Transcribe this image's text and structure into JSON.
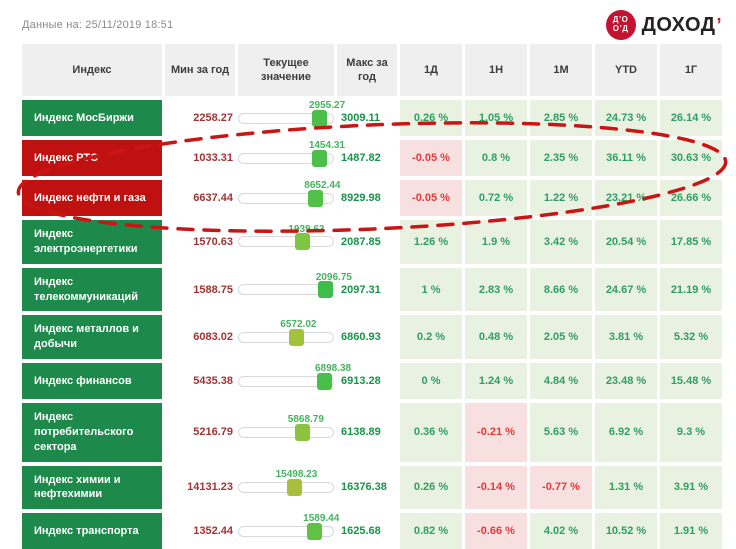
{
  "meta": {
    "timestamp_label": "Данные на: 25/11/2019 18:51"
  },
  "logo": {
    "badge_lines": [
      "Д’О",
      "О’Д"
    ],
    "text": "ДОХОД",
    "tick": "’",
    "badge_color": "#c41230"
  },
  "columns": [
    "Индекс",
    "Мин за год",
    "Текущее значение",
    "Макс за год",
    "1Д",
    "1Н",
    "1М",
    "YTD",
    "1Г"
  ],
  "colors": {
    "label_green": "#1d8a4b",
    "label_red": "#c01111",
    "pct_positive_bg": "#e9f1e0",
    "pct_negative_bg": "#f9e0e0",
    "pct_positive_text": "#2f9e63",
    "pct_negative_text": "#e23b3b",
    "min_text": "#a03434",
    "max_text": "#179447",
    "current_text": "#45b35f",
    "annotation": "#cb1414"
  },
  "rows": [
    {
      "name": "Индекс МосБиржи",
      "tone": "green",
      "min": "2258.27",
      "current": "2955.27",
      "max": "3009.11",
      "thumb_color": "#4bbf4a",
      "pcts": [
        "0.26 %",
        "1.05 %",
        "2.85 %",
        "24.73 %",
        "26.14 %"
      ]
    },
    {
      "name": "Индекс РТС",
      "tone": "red",
      "min": "1033.31",
      "current": "1454.31",
      "max": "1487.82",
      "thumb_color": "#4bbf4a",
      "pcts": [
        "-0.05 %",
        "0.8 %",
        "2.35 %",
        "36.11 %",
        "30.63 %"
      ]
    },
    {
      "name": "Индекс нефти и газа",
      "tone": "red",
      "min": "6637.44",
      "current": "8652.44",
      "max": "8929.98",
      "thumb_color": "#52c148",
      "pcts": [
        "-0.05 %",
        "0.72 %",
        "1.22 %",
        "23.21 %",
        "26.66 %"
      ]
    },
    {
      "name": "Индекс электроэнергетики",
      "tone": "green",
      "min": "1570.63",
      "current": "1939.63",
      "max": "2087.85",
      "thumb_color": "#7cc742",
      "pcts": [
        "1.26 %",
        "1.9 %",
        "3.42 %",
        "20.54 %",
        "17.85 %"
      ]
    },
    {
      "name": "Индекс телекоммуникаций",
      "tone": "green",
      "min": "1588.75",
      "current": "2096.75",
      "max": "2097.31",
      "thumb_color": "#3fbd4b",
      "pcts": [
        "1 %",
        "2.83 %",
        "8.66 %",
        "24.67 %",
        "21.19 %"
      ]
    },
    {
      "name": "Индекс металлов и добычи",
      "tone": "green",
      "min": "6083.02",
      "current": "6572.02",
      "max": "6860.93",
      "thumb_color": "#a3c23c",
      "pcts": [
        "0.2 %",
        "0.48 %",
        "2.05 %",
        "3.81 %",
        "5.32 %"
      ]
    },
    {
      "name": "Индекс финансов",
      "tone": "green",
      "min": "5435.38",
      "current": "6898.38",
      "max": "6913.28",
      "thumb_color": "#47bf49",
      "pcts": [
        "0 %",
        "1.24 %",
        "4.84 %",
        "23.48 %",
        "15.48 %"
      ]
    },
    {
      "name": "Индекс потребительского сектора",
      "tone": "green",
      "min": "5216.79",
      "current": "5868.79",
      "max": "6138.89",
      "thumb_color": "#8bc33f",
      "pcts": [
        "0.36 %",
        "-0.21 %",
        "5.63 %",
        "6.92 %",
        "9.3 %"
      ]
    },
    {
      "name": "Индекс химии и нефтехимии",
      "tone": "green",
      "min": "14131.23",
      "current": "15498.23",
      "max": "16376.38",
      "thumb_color": "#a9bf3b",
      "pcts": [
        "0.26 %",
        "-0.14 %",
        "-0.77 %",
        "1.31 %",
        "3.91 %"
      ]
    },
    {
      "name": "Индекс транспорта",
      "tone": "green",
      "min": "1352.44",
      "current": "1589.44",
      "max": "1625.68",
      "thumb_color": "#5fc245",
      "pcts": [
        "0.82 %",
        "-0.66 %",
        "4.02 %",
        "10.52 %",
        "1.91 %"
      ]
    }
  ],
  "annotation": {
    "shape": "dashed-ellipse",
    "circled_rows": [
      "Индекс РТС",
      "Индекс нефти и газа"
    ]
  }
}
